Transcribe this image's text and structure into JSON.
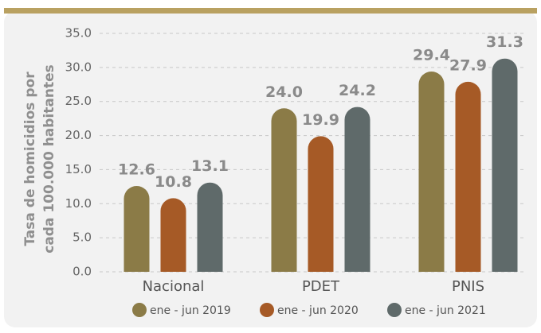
{
  "chart_data": {
    "type": "bar",
    "y_label": [
      "Tasa de homicidios por",
      "cada 100.000 habitantes"
    ],
    "categories": [
      "Nacional",
      "PDET",
      "PNIS"
    ],
    "series": [
      {
        "name": "ene - jun 2019",
        "color": "#8b7b47",
        "values": [
          12.6,
          24.0,
          29.4
        ],
        "value_labels": [
          "12.6",
          "24.0",
          "29.4"
        ]
      },
      {
        "name": "ene - jun 2020",
        "color": "#a65a26",
        "values": [
          10.8,
          19.9,
          27.9
        ],
        "value_labels": [
          "10.8",
          "19.9",
          "27.9"
        ]
      },
      {
        "name": "ene - jun 2021",
        "color": "#5f6a6a",
        "values": [
          13.1,
          24.2,
          31.3
        ],
        "value_labels": [
          "13.1",
          "24.2",
          "31.3"
        ]
      }
    ],
    "ylim": [
      0,
      35
    ],
    "yticks": [
      {
        "value": 0,
        "label": "0.0"
      },
      {
        "value": 5,
        "label": "5.0"
      },
      {
        "value": 10,
        "label": "10.0"
      },
      {
        "value": 15,
        "label": "15.0"
      },
      {
        "value": 20,
        "label": "20.0"
      },
      {
        "value": 25,
        "label": "25.0"
      },
      {
        "value": 30,
        "label": "30.0"
      },
      {
        "value": 35,
        "label": "35.0"
      }
    ],
    "grid": true
  }
}
